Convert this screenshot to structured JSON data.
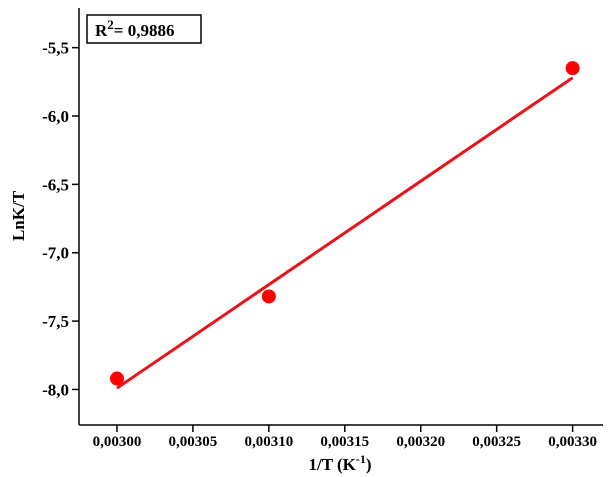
{
  "chart_data": {
    "type": "scatter",
    "xlabel": {
      "text": "1/T (K",
      "superscript": "-1",
      "after": ")"
    },
    "ylabel": "LnK/T",
    "annotation": {
      "base": "R",
      "superscript": "2",
      "text": "= 0,9886"
    },
    "xlim": [
      0.002975,
      0.00332
    ],
    "ylim": [
      -8.26,
      -5.21
    ],
    "xticks": [
      {
        "value": 0.003,
        "label": "0,00300"
      },
      {
        "value": 0.00305,
        "label": "0,00305"
      },
      {
        "value": 0.0031,
        "label": "0,00310"
      },
      {
        "value": 0.00315,
        "label": "0,00315"
      },
      {
        "value": 0.0032,
        "label": "0,00320"
      },
      {
        "value": 0.00325,
        "label": "0,00325"
      },
      {
        "value": 0.0033,
        "label": "0,00330"
      }
    ],
    "yticks": [
      {
        "value": -5.5,
        "label": "-5,5"
      },
      {
        "value": -6,
        "label": "-6,0"
      },
      {
        "value": -6.5,
        "label": "-6,5"
      },
      {
        "value": -7,
        "label": "-7,0"
      },
      {
        "value": -7.5,
        "label": "-7,5"
      },
      {
        "value": -8,
        "label": "-8,0"
      }
    ],
    "series": [
      {
        "kind": "points",
        "color": "#ff0000",
        "x": [
          0.003,
          0.0031,
          0.0033
        ],
        "values": [
          -7.92,
          -7.32,
          -5.65
        ]
      },
      {
        "kind": "line",
        "color": "#e8141a",
        "x": [
          0.003,
          0.0033
        ],
        "values": [
          -7.99,
          -5.72
        ]
      }
    ]
  }
}
